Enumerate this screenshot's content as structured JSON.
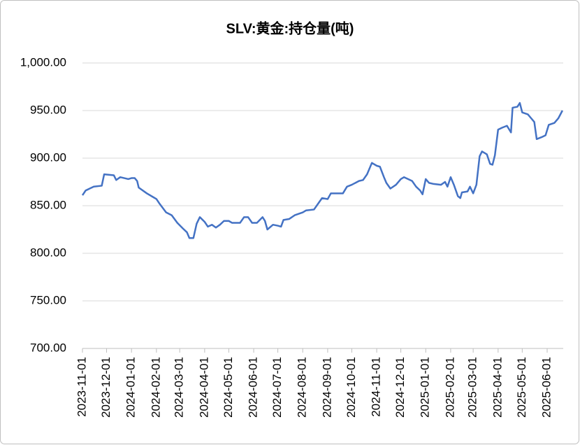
{
  "chart_data": {
    "type": "line",
    "title": "SLV:黄金:持仓量(吨)",
    "x": [
      "2023-11-01",
      "2023-11-05",
      "2023-11-15",
      "2023-11-25",
      "2023-11-28",
      "2023-12-10",
      "2023-12-13",
      "2023-12-18",
      "2023-12-28",
      "2024-01-01",
      "2024-01-05",
      "2024-01-08",
      "2024-01-10",
      "2024-01-20",
      "2024-01-28",
      "2024-02-01",
      "2024-02-05",
      "2024-02-13",
      "2024-02-20",
      "2024-02-27",
      "2024-03-05",
      "2024-03-10",
      "2024-03-13",
      "2024-03-18",
      "2024-03-22",
      "2024-03-26",
      "2024-04-01",
      "2024-04-05",
      "2024-04-10",
      "2024-04-15",
      "2024-04-20",
      "2024-04-25",
      "2024-05-01",
      "2024-05-05",
      "2024-05-15",
      "2024-05-20",
      "2024-05-25",
      "2024-05-30",
      "2024-06-05",
      "2024-06-12",
      "2024-06-15",
      "2024-06-18",
      "2024-06-25",
      "2024-07-01",
      "2024-07-05",
      "2024-07-08",
      "2024-07-15",
      "2024-07-22",
      "2024-08-01",
      "2024-08-05",
      "2024-08-15",
      "2024-08-20",
      "2024-08-25",
      "2024-09-01",
      "2024-09-05",
      "2024-09-20",
      "2024-09-25",
      "2024-10-01",
      "2024-10-10",
      "2024-10-15",
      "2024-10-20",
      "2024-10-26",
      "2024-11-01",
      "2024-11-05",
      "2024-11-10",
      "2024-11-13",
      "2024-11-18",
      "2024-11-25",
      "2024-12-01",
      "2024-12-05",
      "2024-12-15",
      "2024-12-20",
      "2024-12-25",
      "2024-12-28",
      "2025-01-01",
      "2025-01-05",
      "2025-01-10",
      "2025-01-20",
      "2025-01-25",
      "2025-01-28",
      "2025-02-01",
      "2025-02-05",
      "2025-02-10",
      "2025-02-13",
      "2025-02-15",
      "2025-02-22",
      "2025-02-25",
      "2025-03-01",
      "2025-03-05",
      "2025-03-09",
      "2025-03-12",
      "2025-03-18",
      "2025-03-22",
      "2025-03-25",
      "2025-03-28",
      "2025-04-01",
      "2025-04-06",
      "2025-04-12",
      "2025-04-17",
      "2025-04-19",
      "2025-04-25",
      "2025-04-28",
      "2025-05-01",
      "2025-05-08",
      "2025-05-12",
      "2025-05-16",
      "2025-05-19",
      "2025-05-25",
      "2025-05-30",
      "2025-06-03",
      "2025-06-10",
      "2025-06-15",
      "2025-06-20"
    ],
    "series": [
      {
        "color": "#4472c4",
        "values": [
          861,
          866,
          870,
          871,
          883,
          882,
          877,
          880,
          878,
          879,
          879,
          876,
          869,
          863,
          859,
          857,
          852,
          843,
          840,
          832,
          826,
          822,
          816,
          816,
          831,
          838,
          833,
          828,
          830,
          827,
          830,
          834,
          834,
          832,
          832,
          838,
          838,
          832,
          832,
          838,
          834,
          825,
          830,
          829,
          828,
          835,
          836,
          840,
          843,
          845,
          846,
          852,
          858,
          857,
          863,
          863,
          870,
          872,
          876,
          877,
          883,
          895,
          892,
          891,
          880,
          874,
          868,
          872,
          878,
          880,
          876,
          870,
          866,
          862,
          878,
          874,
          873,
          872,
          875,
          870,
          880,
          872,
          860,
          858,
          864,
          865,
          870,
          863,
          872,
          902,
          907,
          904,
          894,
          893,
          903,
          930,
          932,
          934,
          927,
          953,
          954,
          958,
          948,
          946,
          942,
          938,
          920,
          922,
          924,
          935,
          937,
          942,
          950
        ]
      }
    ],
    "xlim": [
      "2023-11-01",
      "2025-06-21"
    ],
    "xticks": [
      "2023-11-01",
      "2023-12-01",
      "2024-01-01",
      "2024-02-01",
      "2024-03-01",
      "2024-04-01",
      "2024-05-01",
      "2024-06-01",
      "2024-07-01",
      "2024-08-01",
      "2024-09-01",
      "2024-10-01",
      "2024-11-01",
      "2024-12-01",
      "2025-01-01",
      "2025-02-01",
      "2025-03-01",
      "2025-04-01",
      "2025-05-01",
      "2025-06-01"
    ],
    "ylim": [
      700,
      1000
    ],
    "yticks": [
      {
        "value": 700,
        "label": "700.00"
      },
      {
        "value": 750,
        "label": "750.00"
      },
      {
        "value": 800,
        "label": "800.00"
      },
      {
        "value": 850,
        "label": "850.00"
      },
      {
        "value": 900,
        "label": "900.00"
      },
      {
        "value": 950,
        "label": "950.00"
      },
      {
        "value": 1000,
        "label": "1,000.00"
      }
    ],
    "grid": true
  }
}
